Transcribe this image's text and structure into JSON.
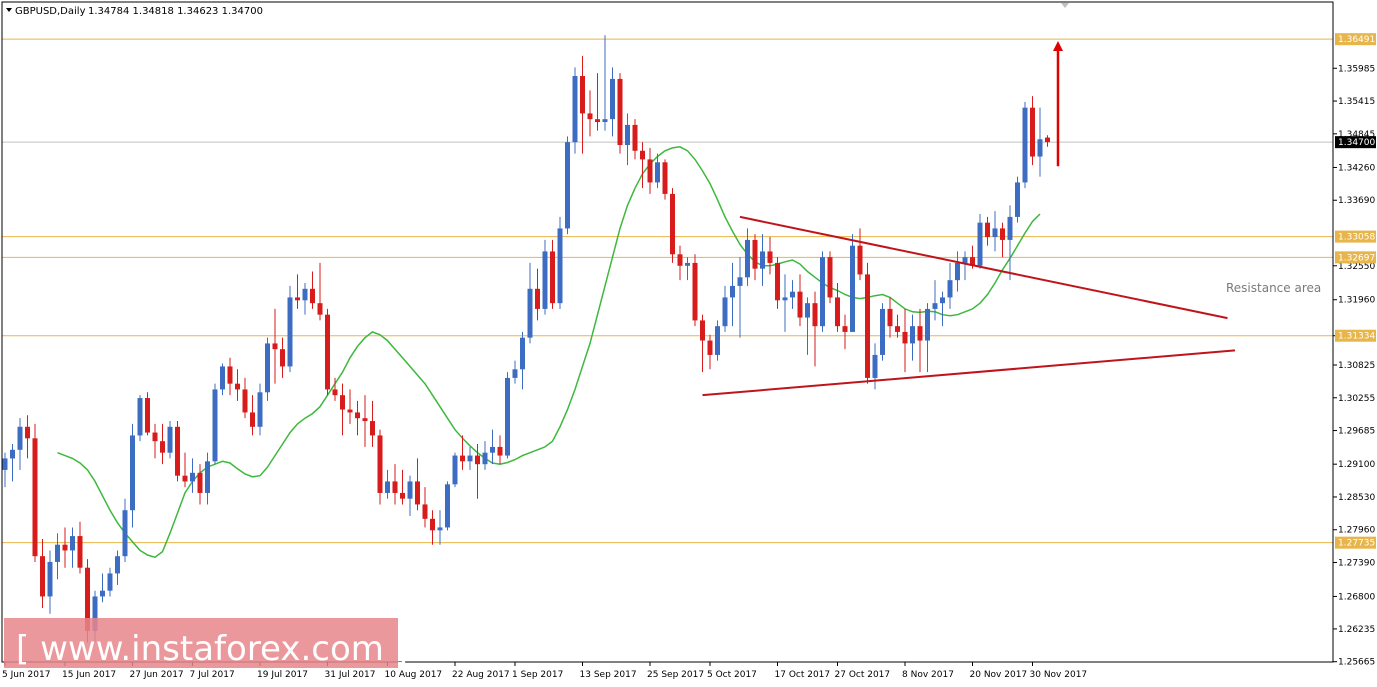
{
  "header": {
    "symbol": "GBPUSD,Daily",
    "ohlc": "1.34784 1.34818 1.34623 1.34700"
  },
  "watermark": "[ www.instaforex.com ]",
  "colors": {
    "bull": "#3d6dc2",
    "bear": "#d81b1b",
    "ma": "#3db83d",
    "level": "#e8b54a",
    "trend": "#c0141b",
    "badge_level": "#e8b54a",
    "badge_price": "#000000",
    "watermark_bg": "#e8868c"
  },
  "chart_data": {
    "type": "candlestick",
    "symbol": "GBPUSD",
    "timeframe": "Daily",
    "ylim": [
      1.2566,
      1.3712
    ],
    "y_ticks": [
      "1.35985",
      "1.35415",
      "1.34845",
      "1.34260",
      "1.33690",
      "1.32550",
      "1.31960",
      "1.31334",
      "1.30825",
      "1.30255",
      "1.29685",
      "1.29100",
      "1.28530",
      "1.27960",
      "1.27390",
      "1.26800",
      "1.26235",
      "1.25665"
    ],
    "x_labels": [
      "5 Jun 2017",
      "15 Jun 2017",
      "27 Jun 2017",
      "7 Jul 2017",
      "19 Jul 2017",
      "31 Jul 2017",
      "10 Aug 2017",
      "22 Aug 2017",
      "1 Sep 2017",
      "13 Sep 2017",
      "25 Sep 2017",
      "5 Oct 2017",
      "17 Oct 2017",
      "27 Oct 2017",
      "8 Nov 2017",
      "20 Nov 2017",
      "30 Nov 2017"
    ],
    "levels": [
      {
        "value": 1.36491,
        "label": "1.36491"
      },
      {
        "value": 1.33058,
        "label": "1.33058"
      },
      {
        "value": 1.32697,
        "label": "1.32697"
      },
      {
        "value": 1.31334,
        "label": "1.31334"
      },
      {
        "value": 1.27735,
        "label": "1.27735"
      }
    ],
    "current_price": {
      "value": 1.347,
      "label": "1.34700"
    },
    "candles": [
      {
        "o": 1.29,
        "h": 1.293,
        "l": 1.287,
        "c": 1.292
      },
      {
        "o": 1.292,
        "h": 1.2945,
        "l": 1.288,
        "c": 1.2935
      },
      {
        "o": 1.2935,
        "h": 1.299,
        "l": 1.29,
        "c": 1.2975
      },
      {
        "o": 1.2975,
        "h": 1.2995,
        "l": 1.292,
        "c": 1.2955
      },
      {
        "o": 1.2955,
        "h": 1.298,
        "l": 1.274,
        "c": 1.275
      },
      {
        "o": 1.275,
        "h": 1.278,
        "l": 1.266,
        "c": 1.268
      },
      {
        "o": 1.268,
        "h": 1.276,
        "l": 1.265,
        "c": 1.274
      },
      {
        "o": 1.274,
        "h": 1.279,
        "l": 1.271,
        "c": 1.277
      },
      {
        "o": 1.277,
        "h": 1.28,
        "l": 1.273,
        "c": 1.276
      },
      {
        "o": 1.276,
        "h": 1.28,
        "l": 1.273,
        "c": 1.2785
      },
      {
        "o": 1.2785,
        "h": 1.281,
        "l": 1.272,
        "c": 1.273
      },
      {
        "o": 1.273,
        "h": 1.2745,
        "l": 1.26,
        "c": 1.262
      },
      {
        "o": 1.262,
        "h": 1.269,
        "l": 1.26,
        "c": 1.268
      },
      {
        "o": 1.268,
        "h": 1.272,
        "l": 1.267,
        "c": 1.269
      },
      {
        "o": 1.269,
        "h": 1.273,
        "l": 1.268,
        "c": 1.272
      },
      {
        "o": 1.272,
        "h": 1.276,
        "l": 1.27,
        "c": 1.275
      },
      {
        "o": 1.275,
        "h": 1.285,
        "l": 1.274,
        "c": 1.283
      },
      {
        "o": 1.283,
        "h": 1.298,
        "l": 1.28,
        "c": 1.296
      },
      {
        "o": 1.296,
        "h": 1.303,
        "l": 1.295,
        "c": 1.3025
      },
      {
        "o": 1.3025,
        "h": 1.3035,
        "l": 1.296,
        "c": 1.2965
      },
      {
        "o": 1.2965,
        "h": 1.298,
        "l": 1.292,
        "c": 1.295
      },
      {
        "o": 1.295,
        "h": 1.298,
        "l": 1.291,
        "c": 1.293
      },
      {
        "o": 1.293,
        "h": 1.2985,
        "l": 1.292,
        "c": 1.2975
      },
      {
        "o": 1.2975,
        "h": 1.2985,
        "l": 1.288,
        "c": 1.289
      },
      {
        "o": 1.289,
        "h": 1.293,
        "l": 1.287,
        "c": 1.288
      },
      {
        "o": 1.288,
        "h": 1.292,
        "l": 1.286,
        "c": 1.2895
      },
      {
        "o": 1.2895,
        "h": 1.291,
        "l": 1.284,
        "c": 1.286
      },
      {
        "o": 1.286,
        "h": 1.293,
        "l": 1.284,
        "c": 1.2915
      },
      {
        "o": 1.2915,
        "h": 1.305,
        "l": 1.291,
        "c": 1.304
      },
      {
        "o": 1.304,
        "h": 1.3085,
        "l": 1.303,
        "c": 1.308
      },
      {
        "o": 1.308,
        "h": 1.3095,
        "l": 1.303,
        "c": 1.305
      },
      {
        "o": 1.305,
        "h": 1.3075,
        "l": 1.302,
        "c": 1.304
      },
      {
        "o": 1.304,
        "h": 1.306,
        "l": 1.299,
        "c": 1.3
      },
      {
        "o": 1.3,
        "h": 1.303,
        "l": 1.296,
        "c": 1.2975
      },
      {
        "o": 1.2975,
        "h": 1.305,
        "l": 1.296,
        "c": 1.3035
      },
      {
        "o": 1.3035,
        "h": 1.313,
        "l": 1.302,
        "c": 1.312
      },
      {
        "o": 1.312,
        "h": 1.318,
        "l": 1.305,
        "c": 1.311
      },
      {
        "o": 1.311,
        "h": 1.313,
        "l": 1.306,
        "c": 1.308
      },
      {
        "o": 1.308,
        "h": 1.322,
        "l": 1.307,
        "c": 1.32
      },
      {
        "o": 1.32,
        "h": 1.324,
        "l": 1.318,
        "c": 1.3195
      },
      {
        "o": 1.3195,
        "h": 1.3225,
        "l": 1.317,
        "c": 1.3215
      },
      {
        "o": 1.3215,
        "h": 1.3245,
        "l": 1.318,
        "c": 1.319
      },
      {
        "o": 1.319,
        "h": 1.326,
        "l": 1.316,
        "c": 1.317
      },
      {
        "o": 1.317,
        "h": 1.318,
        "l": 1.303,
        "c": 1.304
      },
      {
        "o": 1.304,
        "h": 1.306,
        "l": 1.302,
        "c": 1.303
      },
      {
        "o": 1.303,
        "h": 1.305,
        "l": 1.296,
        "c": 1.3005
      },
      {
        "o": 1.3005,
        "h": 1.304,
        "l": 1.298,
        "c": 1.3
      },
      {
        "o": 1.3,
        "h": 1.302,
        "l": 1.296,
        "c": 1.299
      },
      {
        "o": 1.299,
        "h": 1.303,
        "l": 1.294,
        "c": 1.2985
      },
      {
        "o": 1.2985,
        "h": 1.302,
        "l": 1.294,
        "c": 1.296
      },
      {
        "o": 1.296,
        "h": 1.297,
        "l": 1.284,
        "c": 1.286
      },
      {
        "o": 1.286,
        "h": 1.29,
        "l": 1.285,
        "c": 1.288
      },
      {
        "o": 1.288,
        "h": 1.291,
        "l": 1.284,
        "c": 1.286
      },
      {
        "o": 1.286,
        "h": 1.29,
        "l": 1.284,
        "c": 1.285
      },
      {
        "o": 1.285,
        "h": 1.289,
        "l": 1.282,
        "c": 1.288
      },
      {
        "o": 1.288,
        "h": 1.292,
        "l": 1.283,
        "c": 1.284
      },
      {
        "o": 1.284,
        "h": 1.287,
        "l": 1.28,
        "c": 1.2815
      },
      {
        "o": 1.2815,
        "h": 1.283,
        "l": 1.277,
        "c": 1.2795
      },
      {
        "o": 1.2795,
        "h": 1.283,
        "l": 1.277,
        "c": 1.28
      },
      {
        "o": 1.28,
        "h": 1.288,
        "l": 1.2795,
        "c": 1.2875
      },
      {
        "o": 1.2875,
        "h": 1.293,
        "l": 1.287,
        "c": 1.2925
      },
      {
        "o": 1.2925,
        "h": 1.296,
        "l": 1.29,
        "c": 1.2915
      },
      {
        "o": 1.2915,
        "h": 1.294,
        "l": 1.29,
        "c": 1.2925
      },
      {
        "o": 1.2925,
        "h": 1.2945,
        "l": 1.285,
        "c": 1.291
      },
      {
        "o": 1.291,
        "h": 1.295,
        "l": 1.29,
        "c": 1.293
      },
      {
        "o": 1.293,
        "h": 1.297,
        "l": 1.291,
        "c": 1.294
      },
      {
        "o": 1.294,
        "h": 1.296,
        "l": 1.291,
        "c": 1.2925
      },
      {
        "o": 1.2925,
        "h": 1.307,
        "l": 1.292,
        "c": 1.306
      },
      {
        "o": 1.306,
        "h": 1.309,
        "l": 1.305,
        "c": 1.3075
      },
      {
        "o": 1.3075,
        "h": 1.314,
        "l": 1.304,
        "c": 1.313
      },
      {
        "o": 1.313,
        "h": 1.326,
        "l": 1.312,
        "c": 1.3215
      },
      {
        "o": 1.3215,
        "h": 1.325,
        "l": 1.316,
        "c": 1.318
      },
      {
        "o": 1.318,
        "h": 1.33,
        "l": 1.317,
        "c": 1.328
      },
      {
        "o": 1.328,
        "h": 1.33,
        "l": 1.318,
        "c": 1.319
      },
      {
        "o": 1.319,
        "h": 1.334,
        "l": 1.318,
        "c": 1.332
      },
      {
        "o": 1.332,
        "h": 1.348,
        "l": 1.331,
        "c": 1.347
      },
      {
        "o": 1.347,
        "h": 1.36,
        "l": 1.345,
        "c": 1.3585
      },
      {
        "o": 1.3585,
        "h": 1.362,
        "l": 1.345,
        "c": 1.352
      },
      {
        "o": 1.352,
        "h": 1.356,
        "l": 1.348,
        "c": 1.351
      },
      {
        "o": 1.351,
        "h": 1.359,
        "l": 1.349,
        "c": 1.3505
      },
      {
        "o": 1.3505,
        "h": 1.3656,
        "l": 1.349,
        "c": 1.351
      },
      {
        "o": 1.351,
        "h": 1.36,
        "l": 1.348,
        "c": 1.358
      },
      {
        "o": 1.358,
        "h": 1.359,
        "l": 1.345,
        "c": 1.3465
      },
      {
        "o": 1.3465,
        "h": 1.352,
        "l": 1.343,
        "c": 1.35
      },
      {
        "o": 1.35,
        "h": 1.351,
        "l": 1.344,
        "c": 1.3455
      },
      {
        "o": 1.3455,
        "h": 1.347,
        "l": 1.339,
        "c": 1.344
      },
      {
        "o": 1.344,
        "h": 1.346,
        "l": 1.338,
        "c": 1.34
      },
      {
        "o": 1.34,
        "h": 1.345,
        "l": 1.339,
        "c": 1.3435
      },
      {
        "o": 1.3435,
        "h": 1.344,
        "l": 1.337,
        "c": 1.338
      },
      {
        "o": 1.338,
        "h": 1.339,
        "l": 1.326,
        "c": 1.3275
      },
      {
        "o": 1.3275,
        "h": 1.329,
        "l": 1.323,
        "c": 1.3255
      },
      {
        "o": 1.3255,
        "h": 1.327,
        "l": 1.323,
        "c": 1.326
      },
      {
        "o": 1.326,
        "h": 1.3275,
        "l": 1.315,
        "c": 1.316
      },
      {
        "o": 1.316,
        "h": 1.317,
        "l": 1.307,
        "c": 1.3125
      },
      {
        "o": 1.3125,
        "h": 1.3135,
        "l": 1.3075,
        "c": 1.31
      },
      {
        "o": 1.31,
        "h": 1.316,
        "l": 1.309,
        "c": 1.315
      },
      {
        "o": 1.315,
        "h": 1.322,
        "l": 1.314,
        "c": 1.32
      },
      {
        "o": 1.32,
        "h": 1.326,
        "l": 1.315,
        "c": 1.322
      },
      {
        "o": 1.322,
        "h": 1.327,
        "l": 1.313,
        "c": 1.3235
      },
      {
        "o": 1.3235,
        "h": 1.332,
        "l": 1.322,
        "c": 1.33
      },
      {
        "o": 1.33,
        "h": 1.331,
        "l": 1.323,
        "c": 1.325
      },
      {
        "o": 1.325,
        "h": 1.331,
        "l": 1.322,
        "c": 1.328
      },
      {
        "o": 1.328,
        "h": 1.3305,
        "l": 1.324,
        "c": 1.326
      },
      {
        "o": 1.326,
        "h": 1.327,
        "l": 1.318,
        "c": 1.3195
      },
      {
        "o": 1.3195,
        "h": 1.324,
        "l": 1.314,
        "c": 1.32
      },
      {
        "o": 1.32,
        "h": 1.323,
        "l": 1.318,
        "c": 1.321
      },
      {
        "o": 1.321,
        "h": 1.324,
        "l": 1.315,
        "c": 1.3165
      },
      {
        "o": 1.3165,
        "h": 1.32,
        "l": 1.31,
        "c": 1.319
      },
      {
        "o": 1.319,
        "h": 1.321,
        "l": 1.308,
        "c": 1.315
      },
      {
        "o": 1.315,
        "h": 1.328,
        "l": 1.314,
        "c": 1.327
      },
      {
        "o": 1.327,
        "h": 1.328,
        "l": 1.319,
        "c": 1.32
      },
      {
        "o": 1.32,
        "h": 1.3225,
        "l": 1.314,
        "c": 1.315
      },
      {
        "o": 1.315,
        "h": 1.317,
        "l": 1.311,
        "c": 1.314
      },
      {
        "o": 1.314,
        "h": 1.331,
        "l": 1.314,
        "c": 1.329
      },
      {
        "o": 1.329,
        "h": 1.332,
        "l": 1.323,
        "c": 1.324
      },
      {
        "o": 1.324,
        "h": 1.326,
        "l": 1.305,
        "c": 1.306
      },
      {
        "o": 1.306,
        "h": 1.312,
        "l": 1.304,
        "c": 1.31
      },
      {
        "o": 1.31,
        "h": 1.319,
        "l": 1.309,
        "c": 1.318
      },
      {
        "o": 1.318,
        "h": 1.32,
        "l": 1.313,
        "c": 1.315
      },
      {
        "o": 1.315,
        "h": 1.317,
        "l": 1.313,
        "c": 1.314
      },
      {
        "o": 1.314,
        "h": 1.318,
        "l": 1.307,
        "c": 1.312
      },
      {
        "o": 1.312,
        "h": 1.317,
        "l": 1.309,
        "c": 1.315
      },
      {
        "o": 1.315,
        "h": 1.318,
        "l": 1.307,
        "c": 1.3125
      },
      {
        "o": 1.3125,
        "h": 1.319,
        "l": 1.307,
        "c": 1.318
      },
      {
        "o": 1.318,
        "h": 1.323,
        "l": 1.316,
        "c": 1.319
      },
      {
        "o": 1.319,
        "h": 1.321,
        "l": 1.315,
        "c": 1.32
      },
      {
        "o": 1.32,
        "h": 1.326,
        "l": 1.318,
        "c": 1.323
      },
      {
        "o": 1.323,
        "h": 1.328,
        "l": 1.321,
        "c": 1.326
      },
      {
        "o": 1.326,
        "h": 1.328,
        "l": 1.323,
        "c": 1.327
      },
      {
        "o": 1.327,
        "h": 1.329,
        "l": 1.325,
        "c": 1.3255
      },
      {
        "o": 1.3255,
        "h": 1.3345,
        "l": 1.325,
        "c": 1.333
      },
      {
        "o": 1.333,
        "h": 1.334,
        "l": 1.329,
        "c": 1.3305
      },
      {
        "o": 1.3305,
        "h": 1.335,
        "l": 1.328,
        "c": 1.332
      },
      {
        "o": 1.332,
        "h": 1.333,
        "l": 1.327,
        "c": 1.33
      },
      {
        "o": 1.33,
        "h": 1.336,
        "l": 1.323,
        "c": 1.334
      },
      {
        "o": 1.334,
        "h": 1.341,
        "l": 1.333,
        "c": 1.34
      },
      {
        "o": 1.34,
        "h": 1.354,
        "l": 1.339,
        "c": 1.353
      },
      {
        "o": 1.353,
        "h": 1.355,
        "l": 1.343,
        "c": 1.3445
      },
      {
        "o": 1.3445,
        "h": 1.353,
        "l": 1.341,
        "c": 1.3475
      },
      {
        "o": 1.3478,
        "h": 1.3482,
        "l": 1.3462,
        "c": 1.347
      }
    ],
    "ma_values": [
      1.293,
      1.2925,
      1.292,
      1.2912,
      1.29,
      1.288,
      1.2855,
      1.283,
      1.2808,
      1.279,
      1.2775,
      1.276,
      1.2752,
      1.2748,
      1.2758,
      1.279,
      1.2825,
      1.286,
      1.288,
      1.2895,
      1.2905,
      1.291,
      1.2915,
      1.2912,
      1.2902,
      1.2893,
      1.2888,
      1.289,
      1.2905,
      1.2925,
      1.2945,
      1.2965,
      1.298,
      1.299,
      1.2998,
      1.301,
      1.303,
      1.305,
      1.307,
      1.3095,
      1.3115,
      1.313,
      1.314,
      1.3135,
      1.3125,
      1.311,
      1.3095,
      1.308,
      1.3065,
      1.305,
      1.303,
      1.301,
      1.299,
      1.297,
      1.2955,
      1.2942,
      1.293,
      1.292,
      1.2912,
      1.291,
      1.2913,
      1.2918,
      1.2925,
      1.293,
      1.2935,
      1.294,
      1.295,
      1.2975,
      1.3005,
      1.304,
      1.308,
      1.312,
      1.317,
      1.322,
      1.327,
      1.332,
      1.336,
      1.339,
      1.3415,
      1.3432,
      1.3445,
      1.3455,
      1.346,
      1.3462,
      1.3455,
      1.344,
      1.342,
      1.3398,
      1.337,
      1.334,
      1.3315,
      1.3292,
      1.3275,
      1.3262,
      1.3255,
      1.3255,
      1.3258,
      1.3262,
      1.3265,
      1.3258,
      1.3245,
      1.3235,
      1.3225,
      1.3217,
      1.3212,
      1.3205,
      1.32,
      1.3198,
      1.32,
      1.3203,
      1.3205,
      1.32,
      1.319,
      1.318,
      1.3175,
      1.3174,
      1.3176,
      1.3175,
      1.317,
      1.3168,
      1.317,
      1.3175,
      1.318,
      1.319,
      1.3205,
      1.3225,
      1.3248,
      1.3268,
      1.329,
      1.3312,
      1.3332,
      1.3345
    ],
    "trendlines": [
      {
        "name": "upper-resistance",
        "from": {
          "index": 98,
          "value": 1.334
        },
        "to": {
          "index": 163,
          "value": 1.3164
        }
      },
      {
        "name": "lower-support",
        "from": {
          "index": 93,
          "value": 1.303
        },
        "to": {
          "index": 164,
          "value": 1.3108
        }
      }
    ],
    "arrow": {
      "from": {
        "index": 140,
        "value": 1.3428
      },
      "to": {
        "index": 140,
        "value": 1.3646
      }
    },
    "annotation": "Resistance area"
  }
}
